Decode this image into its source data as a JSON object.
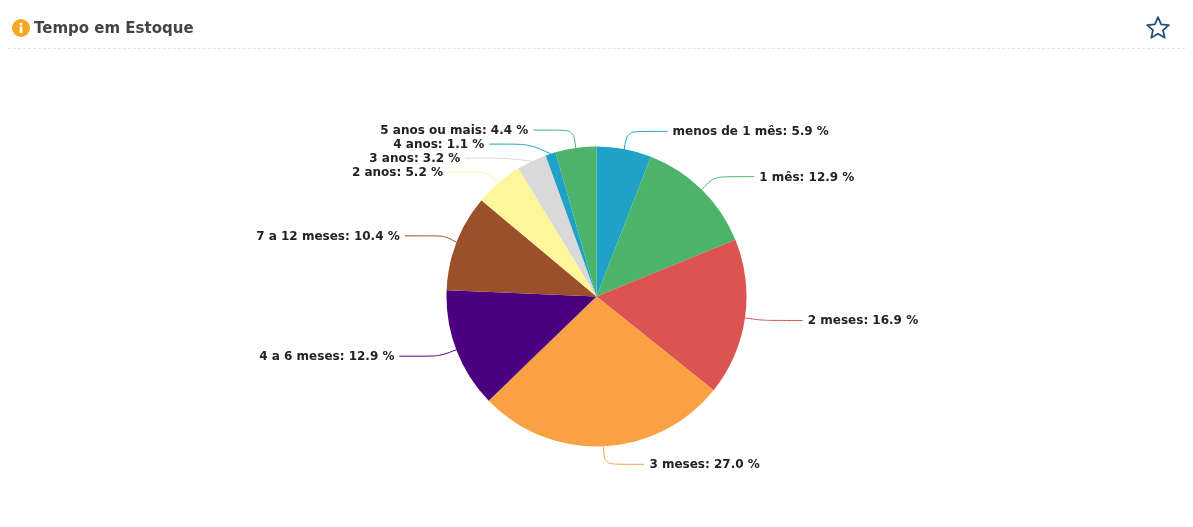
{
  "chart_data": {
    "type": "pie",
    "title": "Tempo em Estoque",
    "categories": [
      "menos de 1 mês",
      "1 mês",
      "2 meses",
      "3 meses",
      "4 a 6 meses",
      "7 a 12 meses",
      "2 anos",
      "3 anos",
      "4 anos",
      "5 anos ou mais"
    ],
    "values": [
      5.9,
      12.9,
      16.9,
      27.0,
      12.9,
      10.4,
      5.2,
      3.2,
      1.1,
      4.4
    ],
    "value_labels": [
      "5.9 %",
      "12.9 %",
      "16.9 %",
      "27.0 %",
      "12.9 %",
      "10.4 %",
      "5.2 %",
      "3.2 %",
      "1.1 %",
      "4.4 %"
    ],
    "colors": [
      "#1fa2c6",
      "#4cb36b",
      "#db5452",
      "#f9a143",
      "#4b0080",
      "#9b4f2a",
      "#fff59a",
      "#d9d9d9",
      "#1fa2c6",
      "#4cb36b"
    ],
    "legend": false
  }
}
